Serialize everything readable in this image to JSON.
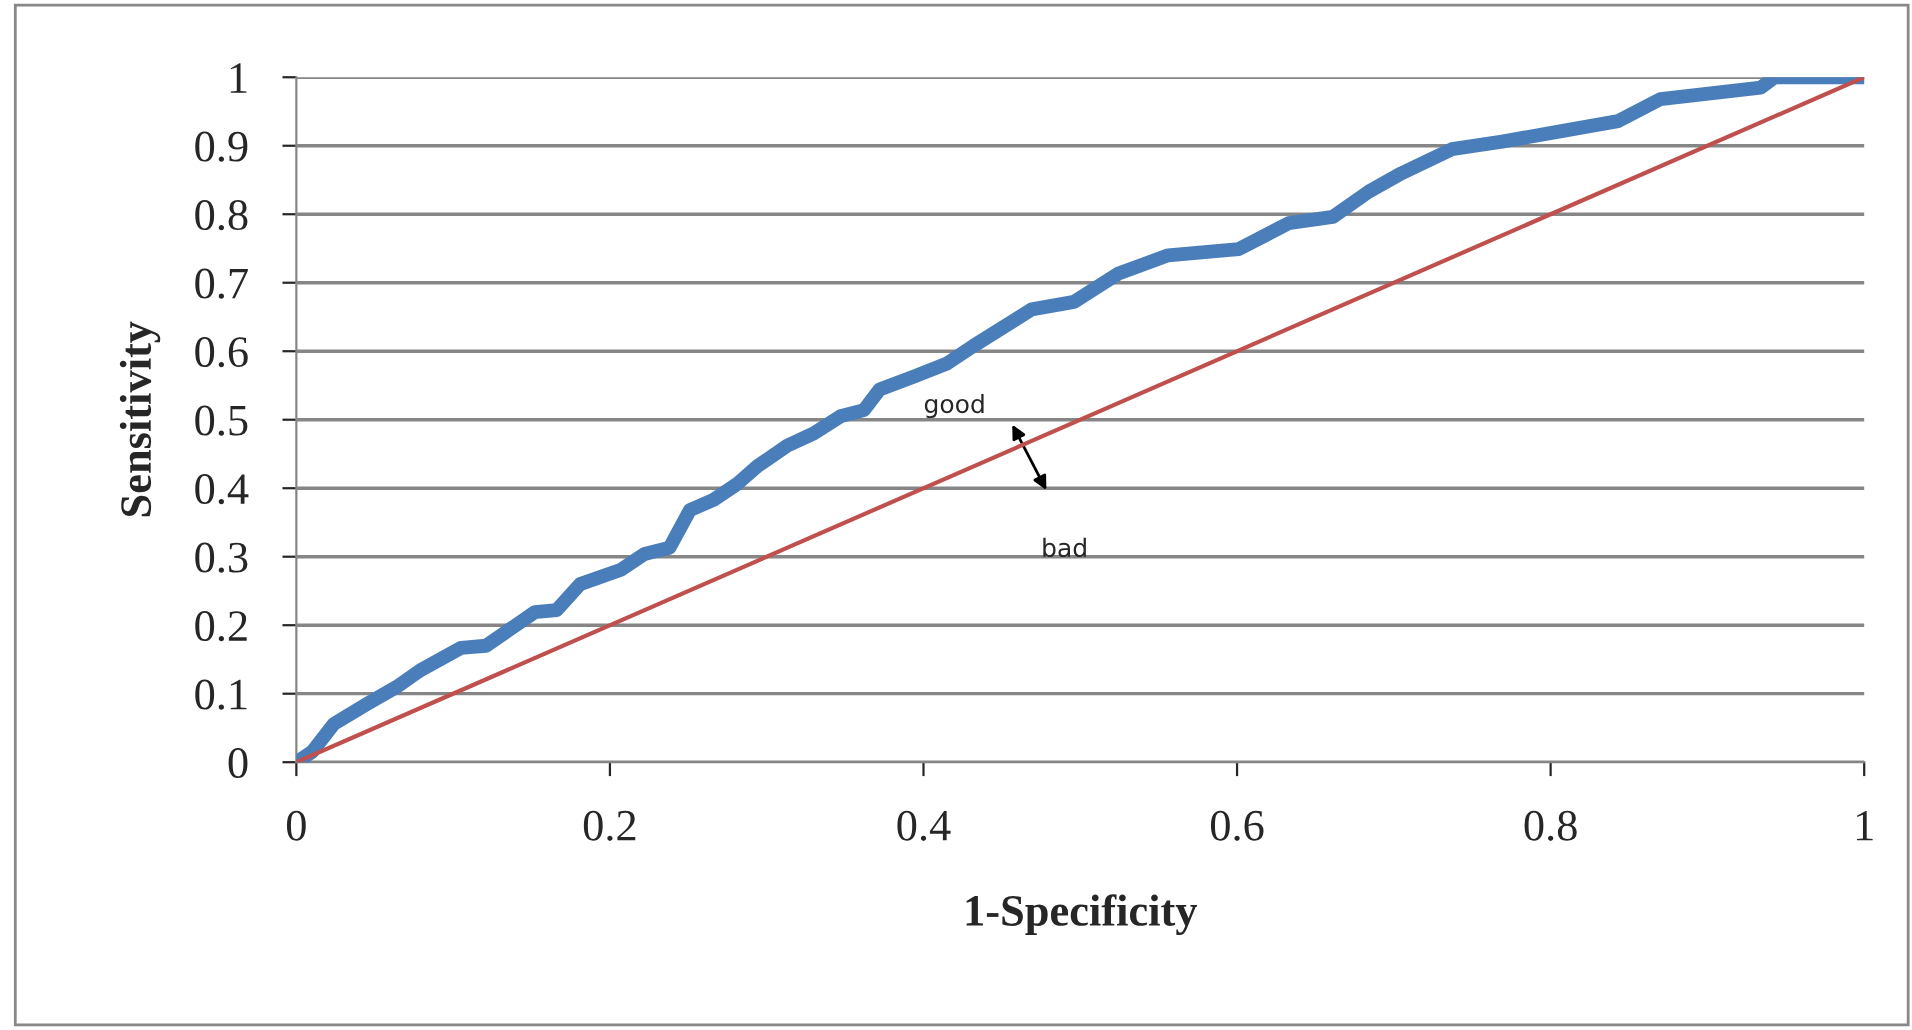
{
  "chart_data": {
    "type": "line",
    "xlabel": "1-Specificity",
    "ylabel": "Sensitivity",
    "xlim": [
      0,
      1
    ],
    "ylim": [
      0,
      1
    ],
    "xticks": [
      0,
      0.2,
      0.4,
      0.6,
      0.8,
      1
    ],
    "yticks": [
      0,
      0.1,
      0.2,
      0.3,
      0.4,
      0.5,
      0.6,
      0.7,
      0.8,
      0.9,
      1
    ],
    "grid": "y",
    "legend": false,
    "marker": "none",
    "line_style": "solid",
    "series": [
      {
        "color": "#4a7ebb",
        "x": [
          0,
          0.01,
          0.024,
          0.045,
          0.064,
          0.079,
          0.105,
          0.121,
          0.152,
          0.166,
          0.181,
          0.207,
          0.222,
          0.238,
          0.251,
          0.266,
          0.281,
          0.294,
          0.313,
          0.33,
          0.347,
          0.362,
          0.372,
          0.394,
          0.415,
          0.432,
          0.469,
          0.496,
          0.524,
          0.556,
          0.601,
          0.633,
          0.661,
          0.684,
          0.705,
          0.737,
          0.769,
          0.806,
          0.843,
          0.87,
          0.934,
          0.943,
          1
        ],
        "values": [
          0,
          0.015,
          0.056,
          0.085,
          0.11,
          0.134,
          0.167,
          0.17,
          0.219,
          0.222,
          0.26,
          0.281,
          0.304,
          0.313,
          0.368,
          0.383,
          0.406,
          0.432,
          0.462,
          0.48,
          0.505,
          0.514,
          0.544,
          0.563,
          0.582,
          0.608,
          0.661,
          0.672,
          0.713,
          0.74,
          0.749,
          0.787,
          0.796,
          0.833,
          0.86,
          0.895,
          0.906,
          0.921,
          0.936,
          0.968,
          0.985,
          1,
          1
        ]
      },
      {
        "color": "#c0504d",
        "x": [
          0,
          1
        ],
        "values": [
          0,
          1
        ]
      }
    ],
    "annotations": [
      "good",
      "bad"
    ]
  }
}
